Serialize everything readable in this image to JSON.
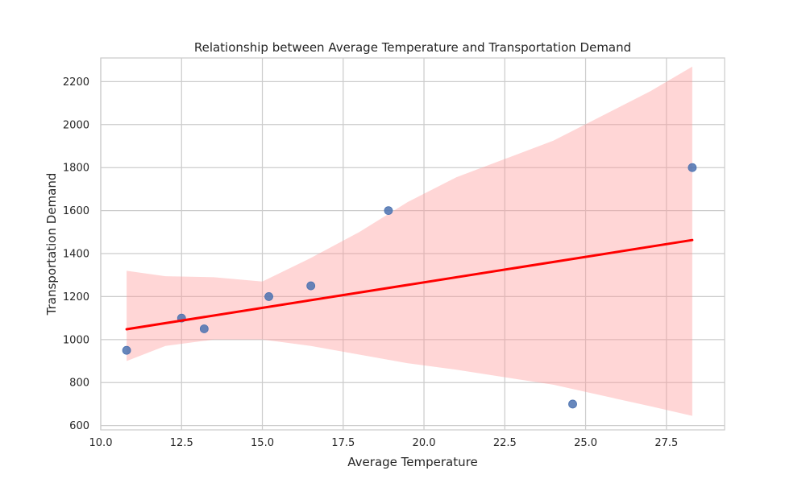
{
  "chart_data": {
    "type": "scatter",
    "title": "Relationship between Average Temperature and Transportation Demand",
    "xlabel": "Average Temperature",
    "ylabel": "Transportation Demand",
    "xlim": [
      10,
      29.3
    ],
    "ylim": [
      580,
      2310
    ],
    "xticks": [
      10.0,
      12.5,
      15.0,
      17.5,
      20.0,
      22.5,
      25.0,
      27.5
    ],
    "xtick_labels": [
      "10.0",
      "12.5",
      "15.0",
      "17.5",
      "20.0",
      "22.5",
      "25.0",
      "27.5"
    ],
    "yticks": [
      600,
      800,
      1000,
      1200,
      1400,
      1600,
      1800,
      2000,
      2200
    ],
    "ytick_labels": [
      "600",
      "800",
      "1000",
      "1200",
      "1400",
      "1600",
      "1800",
      "2000",
      "2200"
    ],
    "grid": true,
    "series": [
      {
        "x": [
          10.8,
          12.5,
          13.2,
          15.2,
          16.5,
          18.9,
          24.6,
          28.3
        ],
        "y": [
          950,
          1100,
          1050,
          1200,
          1250,
          1600,
          700,
          1800
        ],
        "color": "#4c72b0"
      }
    ],
    "regression_line": {
      "x": [
        10.8,
        28.3
      ],
      "y": [
        1048,
        1463
      ],
      "color": "#ff0000"
    },
    "confidence_band": {
      "color": "#ff9999",
      "x": [
        10.8,
        12.0,
        13.5,
        15.0,
        16.5,
        18.0,
        19.5,
        21.0,
        22.5,
        24.0,
        25.5,
        27.0,
        28.3
      ],
      "upper": [
        1320,
        1295,
        1290,
        1270,
        1380,
        1500,
        1640,
        1755,
        1840,
        1925,
        2040,
        2155,
        2270
      ],
      "lower": [
        900,
        970,
        1000,
        1000,
        970,
        930,
        890,
        860,
        825,
        790,
        740,
        690,
        645
      ]
    }
  }
}
